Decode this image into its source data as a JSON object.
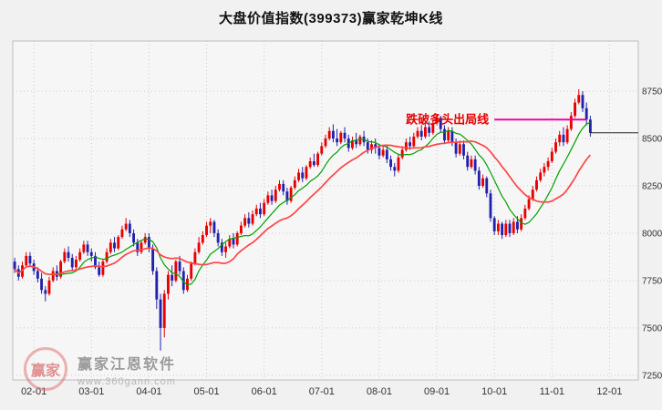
{
  "title": "大盘价值指数(399373)赢家乾坤K线",
  "watermark": {
    "brand": "赢家江恩软件",
    "url": "www.360gann.com",
    "logo_text": "赢家"
  },
  "chart_data": {
    "type": "candlestick",
    "title": "大盘价值指数(399373)赢家乾坤K线",
    "y_axis": {
      "ticks": [
        8750,
        8500,
        8250,
        8000,
        7750,
        7500,
        7250
      ],
      "range": [
        7225,
        9015
      ],
      "grid": true
    },
    "x_axis": {
      "labels": [
        "02-01",
        "03-01",
        "04-01",
        "05-01",
        "06-01",
        "07-01",
        "08-01",
        "09-01",
        "10-01",
        "11-01",
        "12-01"
      ],
      "label_days": [
        5,
        20,
        35,
        50,
        65,
        80,
        95,
        110,
        125,
        140,
        155
      ],
      "days_total": 163,
      "grid": true
    },
    "ohlc": [
      [
        7850,
        7870,
        7790,
        7810
      ],
      [
        7810,
        7830,
        7750,
        7770
      ],
      [
        7770,
        7850,
        7760,
        7830
      ],
      [
        7830,
        7900,
        7820,
        7880
      ],
      [
        7880,
        7900,
        7820,
        7840
      ],
      [
        7840,
        7860,
        7780,
        7800
      ],
      [
        7800,
        7820,
        7740,
        7760
      ],
      [
        7760,
        7790,
        7680,
        7700
      ],
      [
        7700,
        7720,
        7640,
        7680
      ],
      [
        7680,
        7770,
        7670,
        7750
      ],
      [
        7750,
        7820,
        7740,
        7800
      ],
      [
        7800,
        7830,
        7750,
        7770
      ],
      [
        7770,
        7860,
        7760,
        7850
      ],
      [
        7850,
        7920,
        7840,
        7900
      ],
      [
        7900,
        7930,
        7850,
        7870
      ],
      [
        7870,
        7890,
        7800,
        7820
      ],
      [
        7820,
        7880,
        7810,
        7860
      ],
      [
        7860,
        7920,
        7850,
        7900
      ],
      [
        7900,
        7960,
        7890,
        7940
      ],
      [
        7940,
        7960,
        7880,
        7900
      ],
      [
        7900,
        7920,
        7850,
        7880
      ],
      [
        7880,
        7900,
        7810,
        7820
      ],
      [
        7820,
        7850,
        7770,
        7780
      ],
      [
        7780,
        7860,
        7770,
        7850
      ],
      [
        7850,
        7920,
        7840,
        7900
      ],
      [
        7900,
        7970,
        7890,
        7950
      ],
      [
        7950,
        7980,
        7900,
        7920
      ],
      [
        7920,
        7990,
        7910,
        7980
      ],
      [
        7980,
        8040,
        7970,
        8020
      ],
      [
        8020,
        8080,
        8010,
        8050
      ],
      [
        8050,
        8070,
        7980,
        8000
      ],
      [
        8000,
        8020,
        7930,
        7950
      ],
      [
        7950,
        7970,
        7880,
        7900
      ],
      [
        7900,
        7960,
        7890,
        7950
      ],
      [
        7950,
        8000,
        7940,
        7980
      ],
      [
        7980,
        8000,
        7900,
        7920
      ],
      [
        7920,
        7940,
        7780,
        7800
      ],
      [
        7800,
        7820,
        7600,
        7650
      ],
      [
        7650,
        7680,
        7380,
        7500
      ],
      [
        7500,
        7700,
        7450,
        7680
      ],
      [
        7680,
        7800,
        7650,
        7780
      ],
      [
        7780,
        7830,
        7720,
        7750
      ],
      [
        7750,
        7860,
        7740,
        7850
      ],
      [
        7850,
        7880,
        7780,
        7800
      ],
      [
        7800,
        7820,
        7680,
        7700
      ],
      [
        7700,
        7780,
        7690,
        7760
      ],
      [
        7760,
        7850,
        7750,
        7840
      ],
      [
        7840,
        7920,
        7830,
        7900
      ],
      [
        7900,
        7980,
        7890,
        7950
      ],
      [
        7950,
        8010,
        7940,
        7990
      ],
      [
        7990,
        8060,
        7980,
        8040
      ],
      [
        8040,
        8080,
        8000,
        8060
      ],
      [
        8060,
        8070,
        7980,
        8000
      ],
      [
        8000,
        8020,
        7930,
        7950
      ],
      [
        7950,
        7970,
        7880,
        7900
      ],
      [
        7900,
        7950,
        7870,
        7930
      ],
      [
        7930,
        7990,
        7920,
        7970
      ],
      [
        7970,
        8000,
        7920,
        7940
      ],
      [
        7940,
        8010,
        7930,
        8000
      ],
      [
        8000,
        8060,
        7990,
        8040
      ],
      [
        8040,
        8100,
        8030,
        8080
      ],
      [
        8080,
        8110,
        8030,
        8050
      ],
      [
        8050,
        8120,
        8040,
        8100
      ],
      [
        8100,
        8150,
        8090,
        8130
      ],
      [
        8130,
        8160,
        8080,
        8100
      ],
      [
        8100,
        8180,
        8090,
        8160
      ],
      [
        8160,
        8220,
        8150,
        8200
      ],
      [
        8200,
        8230,
        8150,
        8170
      ],
      [
        8170,
        8250,
        8160,
        8230
      ],
      [
        8230,
        8280,
        8220,
        8260
      ],
      [
        8260,
        8280,
        8200,
        8220
      ],
      [
        8220,
        8240,
        8150,
        8170
      ],
      [
        8170,
        8250,
        8160,
        8240
      ],
      [
        8240,
        8300,
        8230,
        8280
      ],
      [
        8280,
        8340,
        8270,
        8320
      ],
      [
        8320,
        8350,
        8270,
        8290
      ],
      [
        8290,
        8360,
        8280,
        8350
      ],
      [
        8350,
        8400,
        8340,
        8380
      ],
      [
        8380,
        8420,
        8350,
        8360
      ],
      [
        8360,
        8430,
        8350,
        8420
      ],
      [
        8420,
        8480,
        8410,
        8460
      ],
      [
        8460,
        8520,
        8450,
        8500
      ],
      [
        8500,
        8560,
        8490,
        8540
      ],
      [
        8540,
        8575,
        8480,
        8500
      ],
      [
        8500,
        8550,
        8460,
        8480
      ],
      [
        8480,
        8540,
        8470,
        8530
      ],
      [
        8530,
        8560,
        8480,
        8500
      ],
      [
        8500,
        8520,
        8430,
        8450
      ],
      [
        8450,
        8510,
        8440,
        8490
      ],
      [
        8490,
        8530,
        8450,
        8470
      ],
      [
        8470,
        8520,
        8460,
        8510
      ],
      [
        8510,
        8540,
        8460,
        8480
      ],
      [
        8480,
        8500,
        8420,
        8440
      ],
      [
        8440,
        8490,
        8420,
        8470
      ],
      [
        8470,
        8500,
        8420,
        8450
      ],
      [
        8450,
        8470,
        8390,
        8410
      ],
      [
        8410,
        8460,
        8400,
        8440
      ],
      [
        8440,
        8460,
        8370,
        8390
      ],
      [
        8390,
        8410,
        8330,
        8350
      ],
      [
        8350,
        8370,
        8300,
        8330
      ],
      [
        8330,
        8420,
        8320,
        8400
      ],
      [
        8400,
        8460,
        8390,
        8440
      ],
      [
        8440,
        8500,
        8430,
        8480
      ],
      [
        8480,
        8510,
        8440,
        8460
      ],
      [
        8460,
        8530,
        8450,
        8510
      ],
      [
        8510,
        8560,
        8500,
        8540
      ],
      [
        8540,
        8570,
        8490,
        8510
      ],
      [
        8510,
        8580,
        8500,
        8560
      ],
      [
        8560,
        8590,
        8510,
        8530
      ],
      [
        8530,
        8600,
        8520,
        8580
      ],
      [
        8580,
        8630,
        8570,
        8610
      ],
      [
        8610,
        8620,
        8530,
        8550
      ],
      [
        8550,
        8570,
        8470,
        8490
      ],
      [
        8490,
        8560,
        8480,
        8540
      ],
      [
        8540,
        8560,
        8460,
        8480
      ],
      [
        8480,
        8500,
        8400,
        8420
      ],
      [
        8420,
        8490,
        8410,
        8470
      ],
      [
        8470,
        8490,
        8390,
        8410
      ],
      [
        8410,
        8430,
        8330,
        8350
      ],
      [
        8350,
        8410,
        8340,
        8390
      ],
      [
        8390,
        8410,
        8310,
        8330
      ],
      [
        8330,
        8350,
        8230,
        8250
      ],
      [
        8250,
        8310,
        8240,
        8290
      ],
      [
        8290,
        8300,
        8190,
        8210
      ],
      [
        8210,
        8230,
        8060,
        8080
      ],
      [
        8080,
        8090,
        7990,
        8010
      ],
      [
        8010,
        8070,
        7990,
        8050
      ],
      [
        8050,
        8060,
        7970,
        7990
      ],
      [
        7990,
        8070,
        7980,
        8050
      ],
      [
        8050,
        8070,
        7980,
        8000
      ],
      [
        8000,
        8080,
        7990,
        8060
      ],
      [
        8060,
        8090,
        8000,
        8020
      ],
      [
        8020,
        8100,
        8010,
        8080
      ],
      [
        8080,
        8150,
        8070,
        8130
      ],
      [
        8130,
        8200,
        8120,
        8180
      ],
      [
        8180,
        8250,
        8170,
        8230
      ],
      [
        8230,
        8300,
        8220,
        8280
      ],
      [
        8280,
        8340,
        8270,
        8320
      ],
      [
        8320,
        8370,
        8300,
        8350
      ],
      [
        8350,
        8400,
        8330,
        8380
      ],
      [
        8380,
        8450,
        8370,
        8430
      ],
      [
        8430,
        8500,
        8420,
        8480
      ],
      [
        8480,
        8540,
        8460,
        8520
      ],
      [
        8520,
        8560,
        8460,
        8480
      ],
      [
        8480,
        8570,
        8470,
        8550
      ],
      [
        8550,
        8640,
        8540,
        8620
      ],
      [
        8620,
        8710,
        8610,
        8690
      ],
      [
        8690,
        8760,
        8680,
        8730
      ],
      [
        8730,
        8750,
        8640,
        8660
      ],
      [
        8660,
        8690,
        8570,
        8600
      ],
      [
        8600,
        8620,
        8510,
        8530
      ]
    ],
    "moving_averages": [
      {
        "name": "short-ma",
        "period": 10,
        "color": "#00a000",
        "width": 1.2
      },
      {
        "name": "long-ma",
        "period": 20,
        "color": "#ff4545",
        "width": 1.7
      }
    ],
    "annotation": {
      "text": "跌破多头出局线",
      "level": 8600,
      "day_start": 125,
      "day_end": 149,
      "text_color": "#e60000",
      "line_color": "#ee00aa"
    },
    "last_price_line": {
      "level": 8530,
      "day_start": 150,
      "color": "#222222"
    },
    "colors": {
      "up": "#e60000",
      "down": "#2121ae",
      "grid": "#cccccc",
      "border": "#bdbdbd",
      "tick_text": "#333333",
      "plot_bg": "#f6f6f6"
    }
  }
}
